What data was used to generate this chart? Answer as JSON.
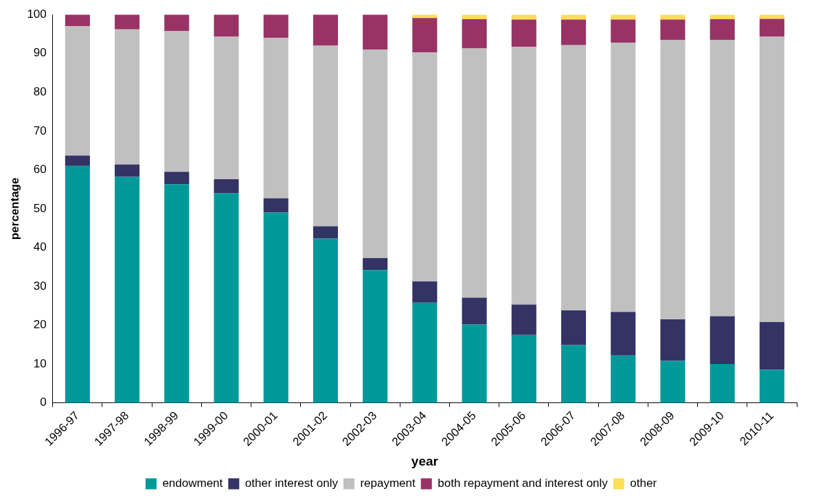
{
  "chart_data": {
    "type": "bar",
    "stacked": true,
    "xlabel": "year",
    "ylabel": "percentage",
    "categories": [
      "1996-97",
      "1997-98",
      "1998-99",
      "1999-00",
      "2000-01",
      "2001-02",
      "2002-03",
      "2003-04",
      "2004-05",
      "2005-06",
      "2006-07",
      "2007-08",
      "2008-09",
      "2009-10",
      "2010-11"
    ],
    "series": [
      {
        "name": "endowment",
        "color": "#009999",
        "values": [
          61,
          58.2,
          56.3,
          54,
          49,
          42.3,
          34.2,
          25.8,
          20.2,
          17.5,
          14.9,
          12.3,
          10.8,
          10,
          8.5
        ]
      },
      {
        "name": "other interest only",
        "color": "#333366",
        "values": [
          2.7,
          3.2,
          3.2,
          3.6,
          3.7,
          3.2,
          3.1,
          5.5,
          6.9,
          7.8,
          8.9,
          11.1,
          10.7,
          12.3,
          12.3
        ]
      },
      {
        "name": "repayment",
        "color": "#c0c0c0",
        "values": [
          33.3,
          34.8,
          36.3,
          36.7,
          41.3,
          46.5,
          53.7,
          58.9,
          64.2,
          66.4,
          68.3,
          69.4,
          72,
          71.2,
          73.5
        ]
      },
      {
        "name": "both repayment and interest only",
        "color": "#993366",
        "values": [
          3,
          3.8,
          4.2,
          5.7,
          6,
          8,
          9,
          8.9,
          7.5,
          7,
          6.6,
          5.9,
          5.2,
          5.3,
          4.6
        ]
      },
      {
        "name": "other",
        "color": "#ffdd55",
        "values": [
          0,
          0,
          0,
          0,
          0,
          0,
          0,
          0.9,
          1.2,
          1.3,
          1.3,
          1.3,
          1.3,
          1.2,
          1.1
        ]
      }
    ],
    "ylim": [
      0,
      100
    ],
    "yticks": [
      0,
      10,
      20,
      30,
      40,
      50,
      60,
      70,
      80,
      90,
      100
    ],
    "grid": false,
    "legend": "bottom"
  }
}
